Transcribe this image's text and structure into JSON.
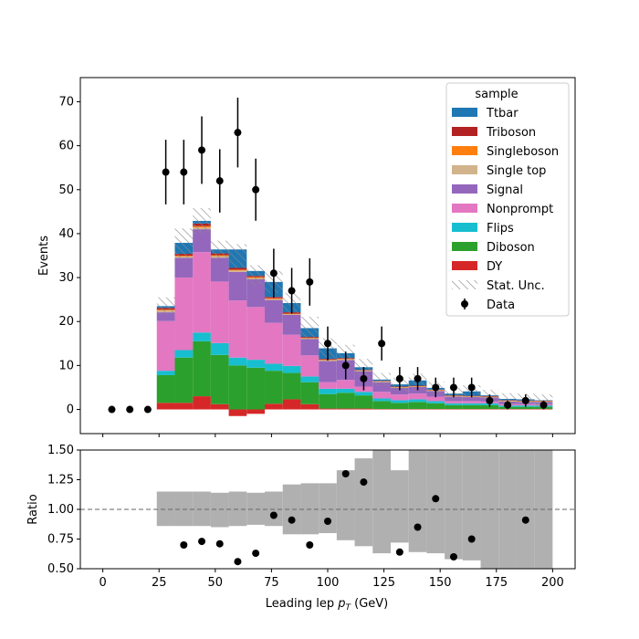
{
  "chart_data": [
    {
      "type": "bar",
      "stacked": true,
      "ylabel": "Events",
      "ylim": [
        -5.5,
        75.5
      ],
      "yticks": [
        0,
        10,
        20,
        30,
        40,
        50,
        60,
        70
      ],
      "xlim": [
        -10,
        210
      ],
      "bin_edges": [
        0,
        8,
        16,
        24,
        32,
        40,
        48,
        56,
        64,
        72,
        80,
        88,
        96,
        104,
        112,
        120,
        128,
        136,
        144,
        152,
        160,
        168,
        176,
        184,
        192,
        200
      ],
      "series": [
        {
          "name": "DY",
          "color": "#d62728",
          "values": [
            0,
            0,
            0,
            1.5,
            1.5,
            3.0,
            1.2,
            -1.5,
            -1.0,
            1.3,
            2.3,
            1.2,
            0.2,
            0.2,
            0.2,
            0.1,
            0.1,
            0.1,
            0.1,
            0.1,
            0.1,
            0.1,
            0.1,
            0.1,
            0.1
          ]
        },
        {
          "name": "Diboson",
          "color": "#2ca02c",
          "values": [
            0,
            0,
            0,
            6.3,
            10.3,
            12.5,
            11.2,
            10.0,
            9.5,
            7.5,
            6.0,
            5.0,
            3.3,
            3.6,
            3.0,
            1.8,
            1.4,
            1.6,
            1.3,
            0.9,
            0.9,
            0.9,
            0.5,
            0.5,
            0.5
          ]
        },
        {
          "name": "Flips",
          "color": "#17becf",
          "values": [
            0,
            0,
            0,
            1.0,
            1.7,
            2.0,
            2.7,
            1.8,
            1.8,
            1.6,
            1.6,
            1.3,
            1.2,
            0.9,
            0.8,
            0.6,
            0.6,
            0.6,
            0.5,
            0.4,
            0.4,
            0.4,
            0.3,
            0.3,
            0.3
          ]
        },
        {
          "name": "Nonprompt",
          "color": "#e377c2",
          "values": [
            0,
            0,
            0,
            11.3,
            16.5,
            18.3,
            14.0,
            13.0,
            12.0,
            9.3,
            7.1,
            4.8,
            1.5,
            2.0,
            1.2,
            1.5,
            1.3,
            1.3,
            1.0,
            0.5,
            0.5,
            0.4,
            0.3,
            0.3,
            0.3
          ]
        },
        {
          "name": "Signal",
          "color": "#9467bd",
          "values": [
            0,
            0,
            0,
            2.0,
            4.5,
            5.2,
            5.4,
            6.5,
            6.3,
            5.2,
            4.5,
            3.7,
            4.8,
            4.5,
            3.5,
            2.2,
            1.5,
            1.5,
            1.3,
            1.0,
            0.9,
            0.9,
            0.6,
            0.5,
            0.5
          ]
        },
        {
          "name": "Single top",
          "color": "#d2b48c",
          "values": [
            0,
            0,
            0,
            0.4,
            0.3,
            0.4,
            0.4,
            0.3,
            0.3,
            0.2,
            0.2,
            0.2,
            0.2,
            0.2,
            0.1,
            0.1,
            0.1,
            0.1,
            0.1,
            0.1,
            0.1,
            0.1,
            0.1,
            0.1,
            0.1
          ]
        },
        {
          "name": "Singleboson",
          "color": "#ff7f0e",
          "values": [
            0,
            0,
            0,
            0.2,
            0.2,
            0.3,
            0.2,
            0.2,
            0.2,
            0.2,
            0.1,
            0.1,
            0.1,
            0.1,
            0.1,
            0.1,
            0.1,
            0.1,
            0.1,
            0.1,
            0.1,
            0.1,
            0.1,
            0.1,
            0.1
          ]
        },
        {
          "name": "Triboson",
          "color": "#b22222",
          "values": [
            0,
            0,
            0,
            0.4,
            0.4,
            0.6,
            0.4,
            0.4,
            0.3,
            0.3,
            0.3,
            0.2,
            0.2,
            0.2,
            0.1,
            0.1,
            0.1,
            0.1,
            0.1,
            0.1,
            0.1,
            0.1,
            0.1,
            0.1,
            0.1
          ]
        },
        {
          "name": "Ttbar",
          "color": "#1f77b4",
          "values": [
            0,
            0,
            0,
            0.4,
            2.5,
            0.6,
            0.9,
            4.2,
            1.1,
            3.4,
            2.1,
            2.0,
            2.4,
            1.1,
            0.6,
            0.3,
            0.5,
            1.2,
            0.4,
            0.4,
            1.0,
            0.2,
            0.3,
            0.3,
            0.1
          ]
        }
      ],
      "stat_unc": [
        0,
        0,
        0,
        2.0,
        3.3,
        2.9,
        2.0,
        2.7,
        2.3,
        2.5,
        2.3,
        2.6,
        2.3,
        1.9,
        1.9,
        1.5,
        1.5,
        1.5,
        1.4,
        1.4,
        1.4,
        1.3,
        1.3,
        1.3,
        1.3
      ],
      "data": {
        "name": "Data",
        "x": [
          4,
          12,
          20,
          28,
          36,
          44,
          52,
          60,
          68,
          76,
          84,
          92,
          100,
          108,
          116,
          124,
          132,
          140,
          148,
          156,
          164,
          172,
          180,
          188,
          196
        ],
        "y": [
          0,
          0,
          0,
          54,
          54,
          59,
          52,
          63,
          50,
          31,
          27,
          29,
          15,
          10,
          7,
          15,
          7,
          7,
          5,
          5,
          5,
          2,
          1,
          2,
          1
        ],
        "yerr": [
          0,
          0,
          0,
          7.35,
          7.35,
          7.68,
          7.21,
          7.94,
          7.07,
          5.57,
          5.2,
          5.39,
          3.87,
          3.16,
          2.65,
          3.87,
          2.65,
          2.65,
          2.24,
          2.24,
          2.24,
          1.41,
          1.0,
          1.41,
          1.0
        ]
      },
      "legend": {
        "title": "sample",
        "position": "upper right",
        "entries": [
          "Ttbar",
          "Triboson",
          "Singleboson",
          "Single top",
          "Signal",
          "Nonprompt",
          "Flips",
          "Diboson",
          "DY",
          "Stat. Unc.",
          "Data"
        ]
      }
    },
    {
      "type": "scatter",
      "ylabel": "Ratio",
      "xlabel": "Leading lep $p_T$ (GeV)",
      "ylim": [
        0.5,
        1.5
      ],
      "yticks": [
        0.5,
        0.75,
        1.0,
        1.25,
        1.5
      ],
      "ytick_labels": [
        "0.50",
        "0.75",
        "1.00",
        "1.25",
        "1.50"
      ],
      "xlim": [
        -10,
        210
      ],
      "xticks": [
        0,
        25,
        50,
        75,
        100,
        125,
        150,
        175,
        200
      ],
      "reference_line": 1.0,
      "band_edges": [
        24,
        32,
        40,
        48,
        56,
        64,
        72,
        80,
        88,
        96,
        104,
        112,
        120,
        128,
        136,
        144,
        152,
        160,
        168,
        176,
        184,
        192,
        200
      ],
      "band_low": [
        0.86,
        0.86,
        0.86,
        0.85,
        0.86,
        0.87,
        0.86,
        0.79,
        0.79,
        0.8,
        0.74,
        0.69,
        0.63,
        0.72,
        0.64,
        0.63,
        0.58,
        0.57,
        0.5,
        0.5,
        0.5,
        0.5
      ],
      "band_high": [
        1.15,
        1.15,
        1.15,
        1.14,
        1.15,
        1.14,
        1.15,
        1.21,
        1.22,
        1.22,
        1.33,
        1.43,
        1.5,
        1.33,
        1.5,
        1.5,
        1.5,
        1.5,
        1.5,
        1.5,
        1.5,
        1.5
      ],
      "points": {
        "x": [
          36,
          44,
          52,
          60,
          68,
          76,
          84,
          92,
          100,
          108,
          116,
          132,
          140,
          148,
          156,
          164,
          188
        ],
        "y": [
          0.7,
          0.73,
          0.71,
          0.56,
          0.63,
          0.95,
          0.91,
          0.7,
          0.9,
          1.3,
          1.23,
          0.64,
          0.85,
          1.09,
          0.6,
          0.75,
          0.91
        ]
      }
    }
  ]
}
